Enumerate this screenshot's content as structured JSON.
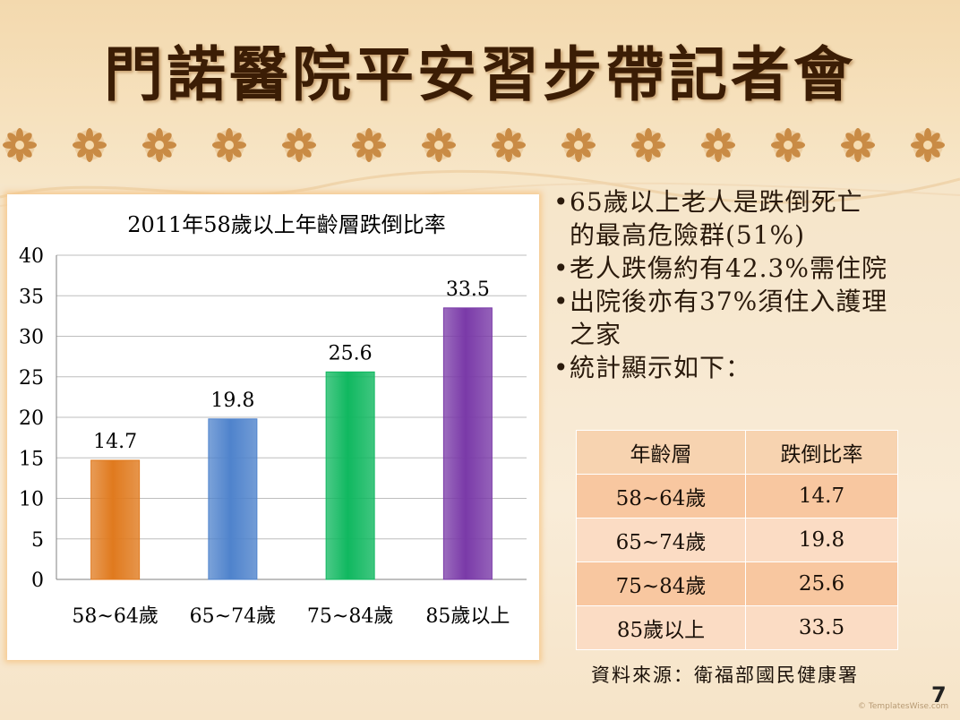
{
  "slide": {
    "title": "門諾醫院平安習步帶記者會",
    "page_number": "7",
    "credit": "© TemplatesWise.com"
  },
  "bullets": [
    {
      "dot": "•",
      "lines": [
        "65歲以上老人是跌倒死亡",
        "的最高危險群(51%)"
      ]
    },
    {
      "dot": "•",
      "lines": [
        "老人跌傷約有42.3%需住院"
      ]
    },
    {
      "dot": "•",
      "lines": [
        "出院後亦有37%須住入護理",
        "之家"
      ]
    },
    {
      "dot": "•",
      "lines": [
        "統計顯示如下："
      ]
    }
  ],
  "table": {
    "headers": [
      "年齡層",
      "跌倒比率"
    ],
    "rows": [
      [
        "58~64歲",
        "14.7"
      ],
      [
        "65~74歲",
        "19.8"
      ],
      [
        "75~84歲",
        "25.6"
      ],
      [
        "85歲以上",
        "33.5"
      ]
    ]
  },
  "source": "資料來源：衛福部國民健康署",
  "chart_data": {
    "type": "bar",
    "title": "2011年58歲以上年齡層跌倒比率",
    "categories": [
      "58~64歲",
      "65~74歲",
      "75~84歲",
      "85歲以上"
    ],
    "values": [
      14.7,
      19.8,
      25.6,
      33.5
    ],
    "ylim": [
      0,
      40
    ],
    "yticks": [
      0,
      5,
      10,
      15,
      20,
      25,
      30,
      35,
      40
    ],
    "grid": true,
    "legend": "none",
    "colors": [
      "#e07a1e",
      "#4f83cc",
      "#10b860",
      "#7a3aa8"
    ]
  }
}
